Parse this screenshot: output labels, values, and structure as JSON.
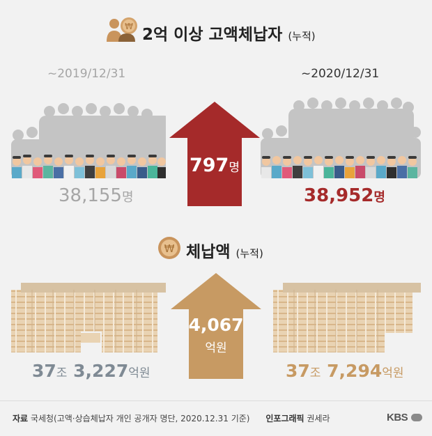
{
  "section1": {
    "title": "2억 이상 고액체납자",
    "title_sub": "(누적)",
    "left_date": "~2019/12/31",
    "right_date": "~2020/12/31",
    "left_count": "38,155",
    "left_unit": "명",
    "right_count": "38,952",
    "right_unit": "명",
    "increase_value": "797",
    "increase_unit": "명",
    "arrow_color": "#a52a2a"
  },
  "section2": {
    "title": "체납액",
    "title_sub": "(누적)",
    "increase_value": "4,067",
    "increase_unit": "억원",
    "left_jo": "37",
    "left_jo_unit": "조",
    "left_eok": "3,227",
    "left_eok_unit": "억원",
    "right_jo": "37",
    "right_jo_unit": "조",
    "right_eok": "7,294",
    "right_eok_unit": "억원",
    "arrow_color": "#c79a63"
  },
  "footer": {
    "source_label": "자료",
    "source_text": "국세청(고액·상습체납자 개인 공개자 명단, 2020.12.31 기준)",
    "graphic_label": "인포그래픽",
    "graphic_author": "권세라",
    "logo_text": "KBS"
  },
  "icons": {
    "people_money": "people-money-icon",
    "won_coin": "won-coin-icon",
    "crowd": "crowd-illustration",
    "money_stacks": "money-stacks-illustration"
  }
}
